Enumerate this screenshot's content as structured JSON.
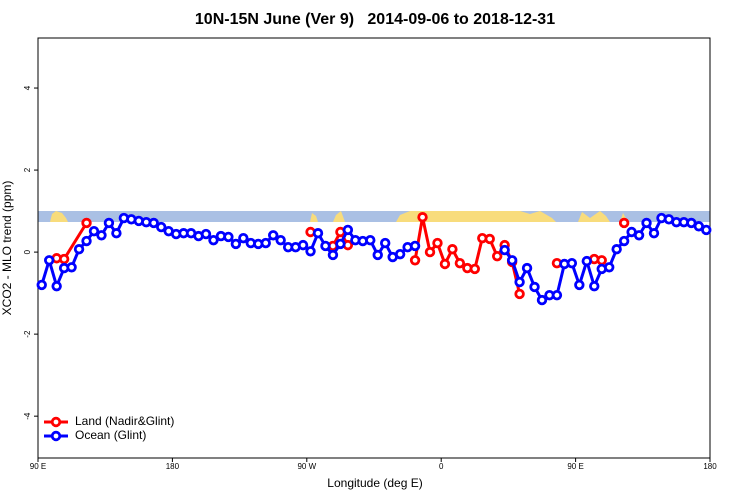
{
  "chart_data": {
    "type": "line",
    "title": "10N-15N June (Ver 9)   2014-09-06 to 2018-12-31",
    "x_label": "Longitude (deg E)",
    "y_label": "XCO2 - MLO trend (ppm)",
    "xlim": [
      90,
      540
    ],
    "ylim": [
      -5.02,
      5.22
    ],
    "xticks": [
      {
        "value": 90,
        "label": "90 E"
      },
      180,
      {
        "value": 270,
        "label": "90 W"
      },
      {
        "value": 360,
        "label": "0"
      },
      {
        "value": 450,
        "label": "90 E"
      },
      {
        "value": 540,
        "label": "180"
      }
    ],
    "yticks": [
      -4,
      -2,
      0,
      2,
      4
    ],
    "legend": "bottom-left",
    "series": [
      {
        "name": "Land (Nadir&Glint)",
        "color": "#ff0000",
        "x": [
          102.5,
          107.5,
          122.5,
          null,
          272.5,
          null,
          287.5,
          292.5,
          297.5,
          null,
          342.5,
          347.5,
          352.5,
          357.5,
          362.5,
          367.5,
          372.5,
          377.5,
          382.5,
          387.5,
          392.5,
          397.5,
          402.5,
          407.5,
          412.5,
          null,
          437.5,
          null,
          462.5,
          467.5,
          null,
          482.5
        ],
        "values": [
          -0.15,
          -0.17,
          0.71,
          null,
          0.49,
          null,
          0.15,
          0.49,
          0.17,
          null,
          -0.2,
          0.85,
          0.0,
          0.22,
          -0.29,
          0.07,
          -0.27,
          -0.39,
          -0.41,
          0.34,
          0.32,
          -0.1,
          0.17,
          -0.24,
          -1.02,
          null,
          -0.27,
          null,
          -0.17,
          -0.2,
          null,
          0.71
        ]
      },
      {
        "name": "Ocean (Glint)",
        "color": "#0000ff",
        "x": [
          92.5,
          97.5,
          102.5,
          107.5,
          112.5,
          117.5,
          122.5,
          127.5,
          132.5,
          137.5,
          142.5,
          147.5,
          152.5,
          157.5,
          162.5,
          167.5,
          172.5,
          177.5,
          182.5,
          187.5,
          192.5,
          197.5,
          202.5,
          207.5,
          212.5,
          217.5,
          222.5,
          227.5,
          232.5,
          237.5,
          242.5,
          247.5,
          252.5,
          257.5,
          262.5,
          267.5,
          272.5,
          277.5,
          282.5,
          287.5,
          292.5,
          297.5,
          302.5,
          307.5,
          312.5,
          317.5,
          322.5,
          327.5,
          332.5,
          337.5,
          342.5,
          null,
          402.5,
          407.5,
          412.5,
          417.5,
          422.5,
          427.5,
          432.5,
          437.5,
          442.5,
          447.5,
          452.5,
          457.5,
          462.5,
          467.5,
          472.5,
          477.5,
          482.5,
          487.5,
          492.5,
          497.5,
          502.5,
          507.5,
          512.5,
          517.5,
          522.5,
          527.5,
          532.5,
          537.5
        ],
        "values": [
          -0.8,
          -0.2,
          -0.83,
          -0.39,
          -0.37,
          0.07,
          0.27,
          0.51,
          0.41,
          0.71,
          0.46,
          0.83,
          0.8,
          0.76,
          0.73,
          0.71,
          0.61,
          0.51,
          0.44,
          0.46,
          0.46,
          0.39,
          0.44,
          0.29,
          0.39,
          0.37,
          0.2,
          0.34,
          0.22,
          0.2,
          0.22,
          0.41,
          0.29,
          0.12,
          0.12,
          0.17,
          0.02,
          0.46,
          0.15,
          -0.07,
          0.2,
          0.54,
          0.29,
          0.27,
          0.29,
          -0.07,
          0.22,
          -0.12,
          -0.05,
          0.12,
          0.15,
          null,
          0.05,
          -0.2,
          -0.73,
          -0.39,
          -0.85,
          -1.17,
          -1.05,
          -1.05,
          -0.29,
          -0.27,
          -0.8,
          -0.22,
          -0.83,
          -0.41,
          -0.37,
          0.07,
          0.27,
          0.49,
          0.41,
          0.71,
          0.46,
          0.83,
          0.8,
          0.73,
          0.73,
          0.71,
          0.63,
          0.54
        ]
      }
    ]
  }
}
